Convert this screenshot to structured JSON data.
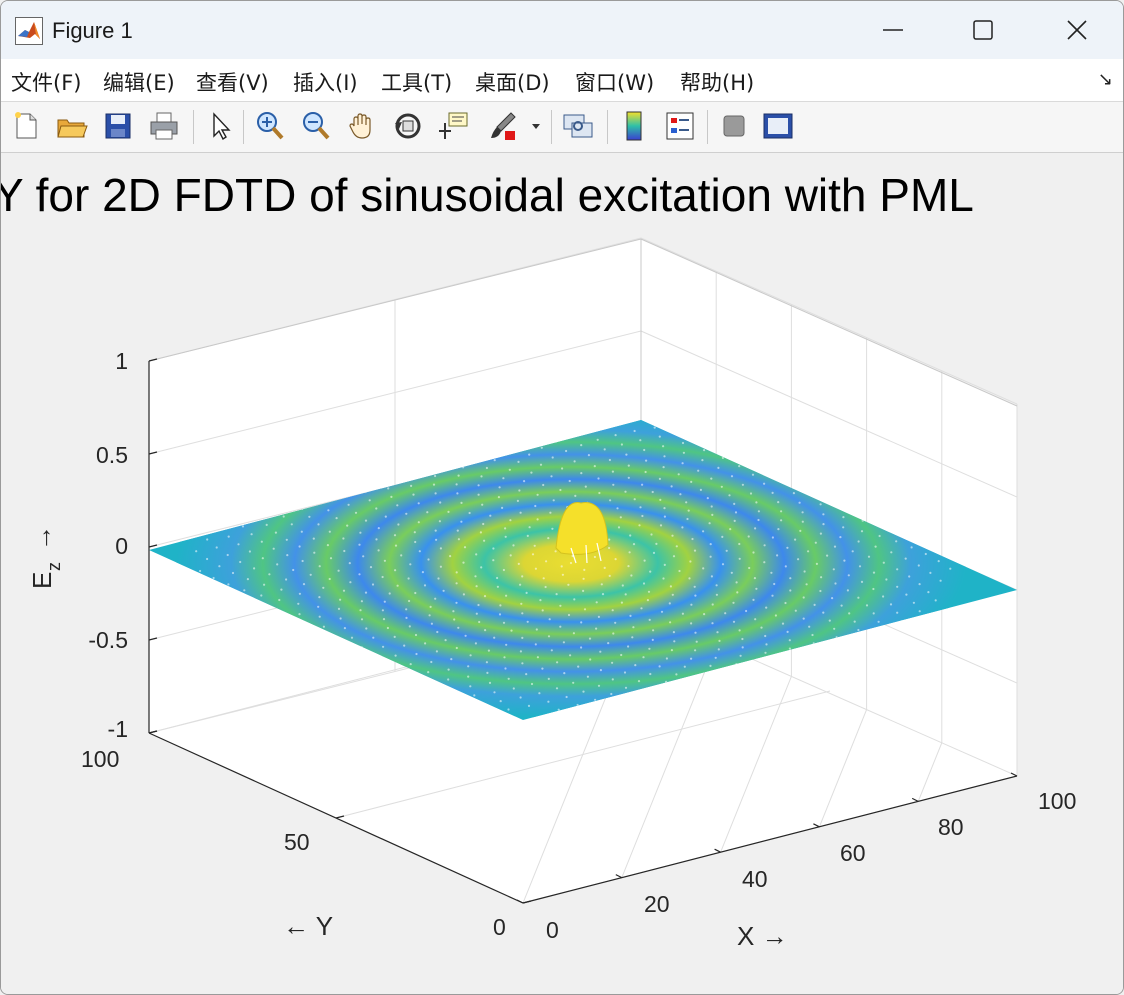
{
  "window": {
    "title": "Figure 1",
    "controls": [
      "minimize",
      "maximize",
      "close"
    ]
  },
  "menubar": {
    "items": [
      "文件(F)",
      "编辑(E)",
      "查看(V)",
      "插入(I)",
      "工具(T)",
      "桌面(D)",
      "窗口(W)",
      "帮助(H)"
    ]
  },
  "toolbar": {
    "icons": [
      "new-figure-icon",
      "open-file-icon",
      "save-icon",
      "print-icon",
      "select-pointer-icon",
      "zoom-in-icon",
      "zoom-out-icon",
      "pan-hand-icon",
      "rotate-3d-icon",
      "data-cursor-icon",
      "brush-icon",
      "brush-dropdown-icon",
      "link-plot-icon",
      "colorbar-icon",
      "legend-icon",
      "hide-plot-tools-icon",
      "show-plot-tools-icon"
    ]
  },
  "plot": {
    "title": "Y for 2D FDTD of sinusoidal excitation with PML",
    "zlabel_main": "E",
    "zlabel_sub": "z",
    "zlabel_arrow": "→",
    "xlabel": "X →",
    "ylabel": "← Y",
    "z_ticks": [
      "1",
      "0.5",
      "0",
      "-0.5",
      "-1"
    ],
    "x_ticks": [
      "0",
      "20",
      "40",
      "60",
      "80",
      "100"
    ],
    "y_ticks": [
      "0",
      "50",
      "100"
    ]
  },
  "chart_data": {
    "type": "surface",
    "title": "Y for 2D FDTD of sinusoidal excitation with PML",
    "xlabel": "X →",
    "ylabel": "← Y",
    "zlabel": "E_z →",
    "xlim": [
      0,
      100
    ],
    "ylim": [
      0,
      100
    ],
    "zlim": [
      -1,
      1
    ],
    "x_ticks": [
      0,
      20,
      40,
      60,
      80,
      100
    ],
    "y_ticks": [
      0,
      50,
      100
    ],
    "z_ticks": [
      -1,
      -0.5,
      0,
      0.5,
      1
    ],
    "grid": true,
    "colormap": "parula",
    "description_values": {
      "source_peak_z": 0.3,
      "wave_ring_amplitude": 0.2,
      "pml_edge_z": 0
    }
  },
  "colors": {
    "titlebar_bg": "#eef3f9",
    "figure_bg": "#f0f0f0",
    "surface_flat": "#1fb3c7",
    "peak": "#f5e02a",
    "wave_high": "#b9d43a",
    "wave_low": "#2f7ff0"
  }
}
